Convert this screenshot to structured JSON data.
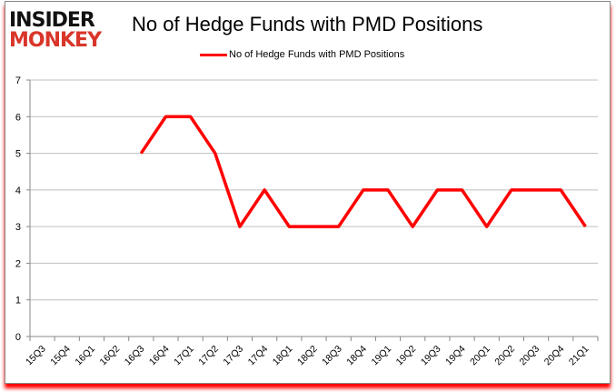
{
  "logo": {
    "line1": "INSIDER",
    "line2": "MONKEY"
  },
  "chart_data": {
    "type": "line",
    "title": "No of Hedge Funds with PMD Positions",
    "xlabel": "",
    "ylabel": "",
    "categories": [
      "15Q3",
      "15Q4",
      "16Q1",
      "16Q2",
      "16Q3",
      "16Q4",
      "17Q1",
      "17Q2",
      "17Q3",
      "17Q4",
      "18Q1",
      "18Q2",
      "18Q3",
      "18Q4",
      "19Q1",
      "19Q2",
      "19Q3",
      "19Q4",
      "20Q1",
      "20Q2",
      "20Q3",
      "20Q4",
      "21Q1"
    ],
    "series": [
      {
        "name": "No of Hedge Funds with PMD Positions",
        "color": "#ff0000",
        "values": [
          null,
          null,
          null,
          null,
          5,
          6,
          6,
          5,
          3,
          4,
          3,
          3,
          3,
          4,
          4,
          3,
          4,
          4,
          3,
          4,
          4,
          4,
          3
        ]
      }
    ],
    "ylim": [
      0,
      7
    ],
    "yticks": [
      0,
      1,
      2,
      3,
      4,
      5,
      6,
      7
    ],
    "grid": true,
    "legend": "top-center"
  }
}
